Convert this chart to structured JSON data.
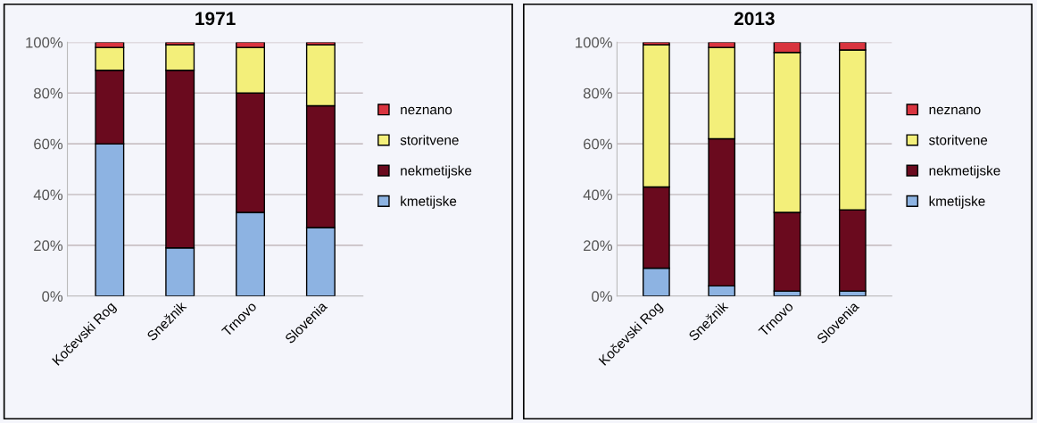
{
  "chart_data": [
    {
      "type": "bar",
      "title": "1971",
      "stacked": true,
      "categories": [
        "Kočevski Rog",
        "Snežnik",
        "Trnovo",
        "Slovenia"
      ],
      "ylim": [
        0,
        100
      ],
      "yticks": [
        {
          "value": 0,
          "label": "0%"
        },
        {
          "value": 20,
          "label": "20%"
        },
        {
          "value": 40,
          "label": "40%"
        },
        {
          "value": 60,
          "label": "60%"
        },
        {
          "value": 80,
          "label": "80%"
        },
        {
          "value": 100,
          "label": "100%"
        }
      ],
      "grid": "y",
      "legend": "right",
      "series": [
        {
          "name": "kmetijske",
          "color": "#8db3e2",
          "values": [
            60,
            19,
            33,
            27
          ]
        },
        {
          "name": "nekmetijske",
          "color": "#6a0a1e",
          "values": [
            29,
            70,
            47,
            48
          ]
        },
        {
          "name": "storitvene",
          "color": "#f3ef7a",
          "values": [
            9,
            10,
            18,
            24
          ]
        },
        {
          "name": "neznano",
          "color": "#d9343f",
          "values": [
            2,
            1,
            2,
            1
          ]
        }
      ]
    },
    {
      "type": "bar",
      "title": "2013",
      "stacked": true,
      "categories": [
        "Kočevski Rog",
        "Snežnik",
        "Trnovo",
        "Slovenia"
      ],
      "ylim": [
        0,
        100
      ],
      "yticks": [
        {
          "value": 0,
          "label": "0%"
        },
        {
          "value": 20,
          "label": "20%"
        },
        {
          "value": 40,
          "label": "40%"
        },
        {
          "value": 60,
          "label": "60%"
        },
        {
          "value": 80,
          "label": "80%"
        },
        {
          "value": 100,
          "label": "100%"
        }
      ],
      "grid": "y",
      "legend": "right",
      "series": [
        {
          "name": "kmetijske",
          "color": "#8db3e2",
          "values": [
            11,
            4,
            2,
            2
          ]
        },
        {
          "name": "nekmetijske",
          "color": "#6a0a1e",
          "values": [
            32,
            58,
            31,
            32
          ]
        },
        {
          "name": "storitvene",
          "color": "#f3ef7a",
          "values": [
            56,
            36,
            63,
            63
          ]
        },
        {
          "name": "neznano",
          "color": "#d9343f",
          "values": [
            1,
            2,
            4,
            3
          ]
        }
      ]
    }
  ]
}
